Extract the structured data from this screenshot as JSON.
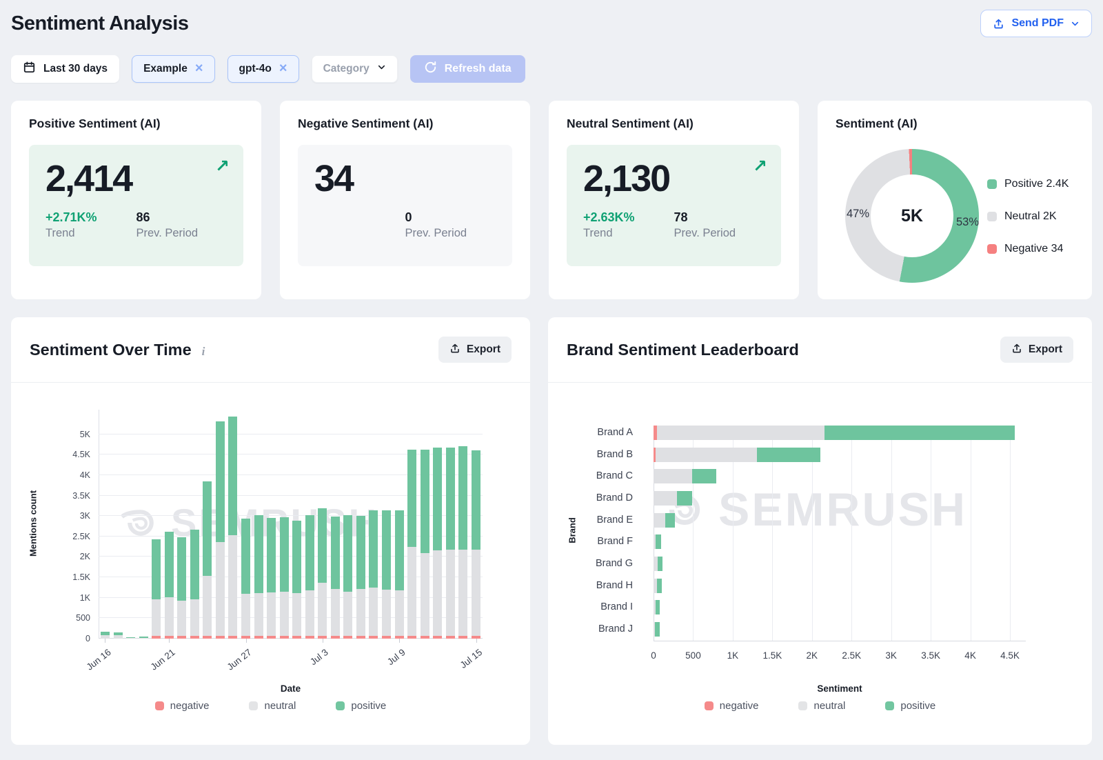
{
  "page": {
    "title": "Sentiment Analysis"
  },
  "header": {
    "send_pdf_label": "Send PDF"
  },
  "filters": {
    "date_range": "Last 30 days",
    "chips": [
      {
        "label": "Example"
      },
      {
        "label": "gpt-4o"
      }
    ],
    "category_label": "Category",
    "refresh_label": "Refresh data"
  },
  "ui": {
    "export_label": "Export",
    "info_icon": "i",
    "watermark": "SEMRUSH",
    "icons": {
      "trend_up": "↗",
      "close": "×"
    }
  },
  "colors": {
    "accent_blue": "#2160ef",
    "positive_green": "#6ec49e",
    "neutral_gray": "#dfe0e3",
    "negative_red": "#f58a8a",
    "trend_green": "#0fa173",
    "panel_green": "#e9f4ee",
    "panel_gray": "#f6f7f9",
    "page_bg": "#eef0f4"
  },
  "kpis": [
    {
      "title": "Positive Sentiment (AI)",
      "value": "2,414",
      "trend": "+2.71K%",
      "trend_label": "Trend",
      "prev": "86",
      "prev_label": "Prev. Period"
    },
    {
      "title": "Negative Sentiment (AI)",
      "value": "34",
      "prev": "0",
      "prev_label": "Prev. Period"
    },
    {
      "title": "Neutral Sentiment (AI)",
      "value": "2,130",
      "trend": "+2.63K%",
      "trend_label": "Trend",
      "prev": "78",
      "prev_label": "Prev. Period"
    }
  ],
  "legends": [
    {
      "label": "negative",
      "color": "#f58a8a"
    },
    {
      "label": "neutral",
      "color": "#e3e4e6"
    },
    {
      "label": "positive",
      "color": "#72c6a0"
    }
  ],
  "chart_data": [
    {
      "id": "sentiment_donut",
      "type": "pie",
      "title": "Sentiment (AI)",
      "center_label": "5K",
      "callouts": {
        "left": "47%",
        "right": "53%"
      },
      "slices": [
        {
          "label": "Positive",
          "pct": 53,
          "color": "#6ec49e",
          "legend_label": "Positive 2.4K"
        },
        {
          "label": "Neutral",
          "pct": 46.25,
          "color": "#dfe0e3",
          "legend_label": "Neutral 2K"
        },
        {
          "label": "Negative",
          "pct": 0.75,
          "color": "#f58080",
          "legend_label": "Negative 34"
        }
      ]
    },
    {
      "id": "sentiment_over_time",
      "type": "bar",
      "stacked": true,
      "title": "Sentiment Over Time",
      "xlabel": "Date",
      "ylabel": "Mentions count",
      "ylim": [
        0,
        5600
      ],
      "series_keys": [
        "negative",
        "neutral",
        "positive"
      ],
      "yticks": [
        {
          "v": 0,
          "label": "0"
        },
        {
          "v": 500,
          "label": "500"
        },
        {
          "v": 1000,
          "label": "1K"
        },
        {
          "v": 1500,
          "label": "1.5K"
        },
        {
          "v": 2000,
          "label": "2K"
        },
        {
          "v": 2500,
          "label": "2.5K"
        },
        {
          "v": 3000,
          "label": "3K"
        },
        {
          "v": 3500,
          "label": "3.5K"
        },
        {
          "v": 4000,
          "label": "4K"
        },
        {
          "v": 4500,
          "label": "4.5K"
        },
        {
          "v": 5000,
          "label": "5K"
        }
      ],
      "xticks": [
        {
          "i": 0,
          "label": "Jun 16"
        },
        {
          "i": 5,
          "label": "Jun 21"
        },
        {
          "i": 11,
          "label": "Jun 27"
        },
        {
          "i": 17,
          "label": "Jul 3"
        },
        {
          "i": 23,
          "label": "Jul 9"
        },
        {
          "i": 29,
          "label": "Jul 15"
        }
      ],
      "values": [
        [
          0,
          90,
          80
        ],
        [
          0,
          80,
          70
        ],
        [
          0,
          10,
          20
        ],
        [
          0,
          15,
          35
        ],
        [
          60,
          900,
          1470
        ],
        [
          60,
          950,
          1600
        ],
        [
          60,
          870,
          1550
        ],
        [
          70,
          900,
          1690
        ],
        [
          70,
          1460,
          2320
        ],
        [
          70,
          2290,
          2950
        ],
        [
          75,
          2460,
          2905
        ],
        [
          60,
          1030,
          1840
        ],
        [
          60,
          1050,
          1910
        ],
        [
          60,
          1070,
          1820
        ],
        [
          60,
          1090,
          1820
        ],
        [
          60,
          1060,
          1760
        ],
        [
          65,
          1110,
          1845
        ],
        [
          75,
          1300,
          1815
        ],
        [
          60,
          1160,
          1760
        ],
        [
          65,
          1080,
          1875
        ],
        [
          60,
          1160,
          1780
        ],
        [
          75,
          1180,
          1885
        ],
        [
          75,
          1130,
          1935
        ],
        [
          65,
          1120,
          1955
        ],
        [
          60,
          2180,
          2380
        ],
        [
          60,
          2040,
          2520
        ],
        [
          60,
          2100,
          2510
        ],
        [
          60,
          2110,
          2500
        ],
        [
          60,
          2110,
          2530
        ],
        [
          60,
          2110,
          2430
        ]
      ]
    },
    {
      "id": "brand_leaderboard",
      "type": "bar-horizontal",
      "stacked": true,
      "title": "Brand Sentiment Leaderboard",
      "xlabel": "Sentiment",
      "ylabel": "Brand",
      "xlim": [
        0,
        4700
      ],
      "series_keys": [
        "negative",
        "neutral",
        "positive"
      ],
      "xticks": [
        {
          "v": 0,
          "label": "0"
        },
        {
          "v": 500,
          "label": "500"
        },
        {
          "v": 1000,
          "label": "1K"
        },
        {
          "v": 1500,
          "label": "1.5K"
        },
        {
          "v": 2000,
          "label": "2K"
        },
        {
          "v": 2500,
          "label": "2.5K"
        },
        {
          "v": 3000,
          "label": "3K"
        },
        {
          "v": 3500,
          "label": "3.5K"
        },
        {
          "v": 4000,
          "label": "4K"
        },
        {
          "v": 4500,
          "label": "4.5K"
        }
      ],
      "categories": [
        "Brand A",
        "Brand B",
        "Brand C",
        "Brand D",
        "Brand E",
        "Brand F",
        "Brand G",
        "Brand H",
        "Brand I",
        "Brand J"
      ],
      "values": [
        [
          45,
          2115,
          2400
        ],
        [
          25,
          1285,
          800
        ],
        [
          0,
          490,
          300
        ],
        [
          0,
          295,
          195
        ],
        [
          0,
          145,
          125
        ],
        [
          0,
          25,
          75
        ],
        [
          0,
          55,
          60
        ],
        [
          0,
          45,
          60
        ],
        [
          0,
          25,
          50
        ],
        [
          0,
          15,
          65
        ]
      ]
    }
  ]
}
